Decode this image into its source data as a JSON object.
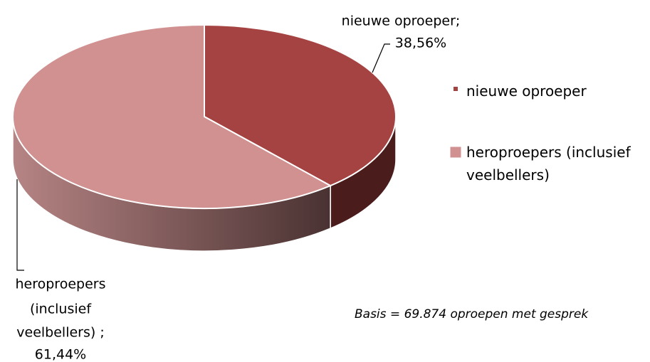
{
  "chart_data": {
    "type": "pie3d",
    "categories": [
      "nieuwe oproeper",
      "heroproepers (inclusief veelbellers)"
    ],
    "values": [
      38.56,
      61.44
    ],
    "value_labels": [
      "38,56%",
      "61,44%"
    ],
    "data_label_text": [
      [
        "nieuwe oproeper;"
      ],
      [
        "heroproepers",
        "(inclusief",
        "veelbellers) ;"
      ]
    ],
    "colors": [
      "#a54342",
      "#d09190"
    ],
    "legend": "right",
    "annotation": "Basis = 69.874 oproepen met gesprek"
  }
}
